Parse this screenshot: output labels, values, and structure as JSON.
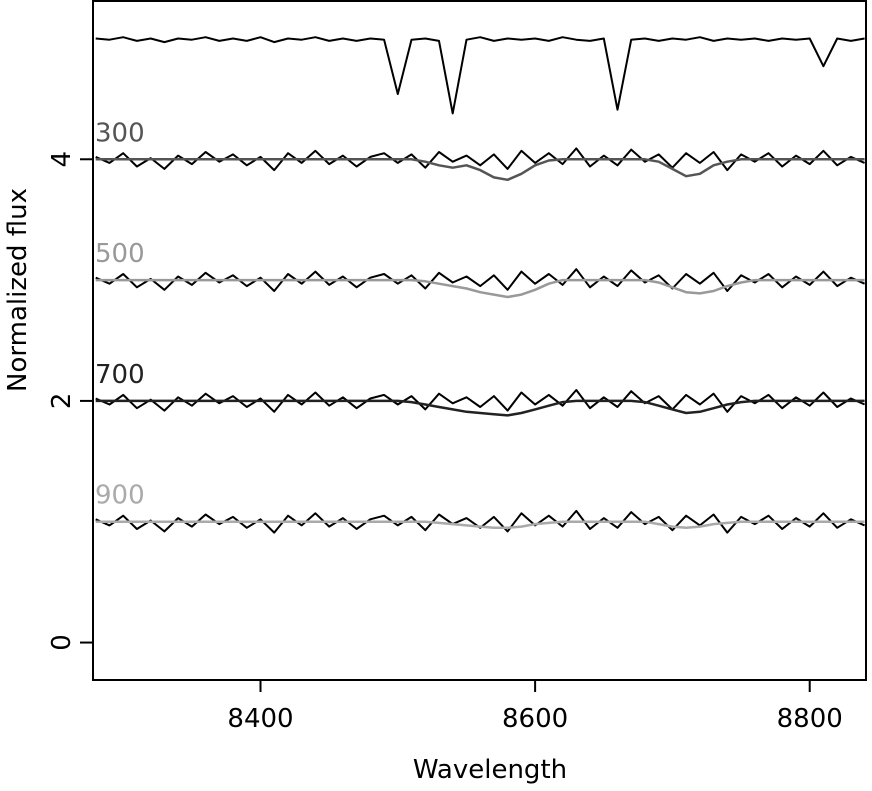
{
  "chart_data": {
    "type": "line",
    "xlabel": "Wavelength",
    "ylabel": "Normalized flux",
    "xlim": [
      8278,
      8841
    ],
    "ylim": [
      -0.31,
      5.31
    ],
    "xticks": [
      8400,
      8600,
      8800
    ],
    "yticks": [
      0,
      2,
      4
    ],
    "x": [
      8280,
      8290,
      8300,
      8310,
      8320,
      8330,
      8340,
      8350,
      8360,
      8370,
      8380,
      8390,
      8400,
      8410,
      8420,
      8430,
      8440,
      8450,
      8460,
      8470,
      8480,
      8490,
      8500,
      8510,
      8520,
      8530,
      8540,
      8550,
      8560,
      8570,
      8580,
      8590,
      8600,
      8610,
      8620,
      8630,
      8640,
      8650,
      8660,
      8670,
      8680,
      8690,
      8700,
      8710,
      8720,
      8730,
      8740,
      8750,
      8760,
      8770,
      8780,
      8790,
      8800,
      8810,
      8820,
      8830,
      8840
    ],
    "series": [
      {
        "color": "#000000",
        "values": [
          5.0,
          4.99,
          5.01,
          4.98,
          5.0,
          4.97,
          5.0,
          4.99,
          5.01,
          4.98,
          5.0,
          4.98,
          5.01,
          4.97,
          5.0,
          4.99,
          5.01,
          4.98,
          5.0,
          4.98,
          5.0,
          4.99,
          4.54,
          4.99,
          5.0,
          4.98,
          4.38,
          4.99,
          5.01,
          4.98,
          5.0,
          4.99,
          5.0,
          4.98,
          5.01,
          4.99,
          4.98,
          5.0,
          4.41,
          4.99,
          5.0,
          4.98,
          5.0,
          4.99,
          5.01,
          4.98,
          5.0,
          4.99,
          5.0,
          4.98,
          5.0,
          4.99,
          5.0,
          4.77,
          5.0,
          4.98,
          5.0
        ]
      },
      {
        "color": "#000000",
        "values": [
          4.02,
          3.97,
          4.05,
          3.94,
          4.01,
          3.92,
          4.03,
          3.96,
          4.06,
          3.98,
          4.04,
          3.95,
          4.02,
          3.91,
          4.05,
          3.97,
          4.07,
          3.96,
          4.03,
          3.94,
          4.02,
          4.05,
          3.97,
          4.04,
          3.93,
          4.06,
          3.98,
          4.03,
          3.95,
          4.04,
          3.92,
          4.07,
          3.97,
          4.05,
          3.96,
          4.09,
          3.94,
          4.03,
          3.95,
          4.08,
          3.98,
          4.04,
          3.93,
          4.05,
          3.97,
          4.06,
          3.91,
          4.04,
          3.98,
          4.05,
          3.94,
          4.03,
          3.96,
          4.07,
          3.95,
          4.02,
          3.97
        ]
      },
      {
        "color": "#000000",
        "values": [
          3.02,
          2.97,
          3.05,
          2.94,
          3.01,
          2.92,
          3.03,
          2.96,
          3.06,
          2.98,
          3.04,
          2.95,
          3.02,
          2.91,
          3.05,
          2.97,
          3.07,
          2.96,
          3.03,
          2.94,
          3.02,
          3.05,
          2.97,
          3.04,
          2.93,
          3.06,
          2.98,
          3.03,
          2.95,
          3.04,
          2.92,
          3.07,
          2.97,
          3.05,
          2.96,
          3.09,
          2.94,
          3.03,
          2.95,
          3.08,
          2.98,
          3.04,
          2.93,
          3.05,
          2.97,
          3.06,
          2.91,
          3.04,
          2.98,
          3.05,
          2.94,
          3.03,
          2.96,
          3.07,
          2.95,
          3.02,
          2.97
        ]
      },
      {
        "color": "#000000",
        "values": [
          2.02,
          1.97,
          2.05,
          1.94,
          2.01,
          1.92,
          2.03,
          1.96,
          2.06,
          1.98,
          2.04,
          1.95,
          2.02,
          1.91,
          2.05,
          1.97,
          2.07,
          1.96,
          2.03,
          1.94,
          2.02,
          2.05,
          1.97,
          2.04,
          1.93,
          2.06,
          1.98,
          2.03,
          1.95,
          2.04,
          1.92,
          2.07,
          1.97,
          2.05,
          1.96,
          2.09,
          1.94,
          2.03,
          1.95,
          2.08,
          1.98,
          2.04,
          1.93,
          2.05,
          1.97,
          2.06,
          1.91,
          2.04,
          1.98,
          2.05,
          1.94,
          2.03,
          1.96,
          2.07,
          1.95,
          2.02,
          1.97
        ]
      },
      {
        "color": "#000000",
        "values": [
          1.02,
          0.97,
          1.05,
          0.94,
          1.01,
          0.92,
          1.03,
          0.96,
          1.06,
          0.98,
          1.04,
          0.95,
          1.02,
          0.91,
          1.05,
          0.97,
          1.07,
          0.96,
          1.03,
          0.94,
          1.02,
          1.05,
          0.97,
          1.04,
          0.93,
          1.06,
          0.98,
          1.03,
          0.95,
          1.04,
          0.92,
          1.07,
          0.97,
          1.05,
          0.96,
          1.09,
          0.94,
          1.03,
          0.95,
          1.08,
          0.98,
          1.04,
          0.93,
          1.05,
          0.97,
          1.06,
          0.91,
          1.04,
          0.98,
          1.05,
          0.94,
          1.03,
          0.96,
          1.07,
          0.95,
          1.02,
          0.97
        ]
      },
      {
        "name": "300",
        "color": "#555555",
        "values": [
          4.0,
          4.0,
          4.0,
          4.0,
          4.0,
          4.0,
          4.0,
          4.0,
          4.0,
          4.0,
          4.0,
          4.0,
          4.0,
          4.0,
          4.0,
          4.0,
          4.0,
          4.0,
          4.0,
          4.0,
          4.0,
          4.0,
          4.0,
          4.0,
          3.98,
          3.95,
          3.93,
          3.95,
          3.91,
          3.85,
          3.83,
          3.88,
          3.95,
          3.99,
          4.0,
          4.0,
          4.0,
          4.0,
          4.0,
          4.0,
          4.0,
          3.98,
          3.92,
          3.86,
          3.88,
          3.95,
          3.98,
          4.0,
          4.0,
          4.0,
          4.0,
          4.0,
          4.0,
          4.0,
          4.0,
          4.0,
          4.0
        ]
      },
      {
        "name": "500",
        "color": "#999999",
        "values": [
          3.0,
          3.0,
          3.0,
          3.0,
          3.0,
          3.0,
          3.0,
          3.0,
          3.0,
          3.0,
          3.0,
          3.0,
          3.0,
          3.0,
          3.0,
          3.0,
          3.0,
          3.0,
          3.0,
          3.0,
          3.0,
          3.0,
          3.0,
          3.0,
          2.99,
          2.97,
          2.95,
          2.93,
          2.9,
          2.88,
          2.86,
          2.88,
          2.92,
          2.97,
          3.0,
          3.0,
          3.0,
          3.0,
          3.0,
          3.0,
          3.0,
          2.98,
          2.94,
          2.9,
          2.89,
          2.91,
          2.95,
          2.98,
          3.0,
          3.0,
          3.0,
          3.0,
          3.0,
          3.0,
          3.0,
          3.0,
          3.0
        ]
      },
      {
        "name": "700",
        "color": "#222222",
        "values": [
          2.0,
          2.0,
          2.0,
          2.0,
          2.0,
          2.0,
          2.0,
          2.0,
          2.0,
          2.0,
          2.0,
          2.0,
          2.0,
          2.0,
          2.0,
          2.0,
          2.0,
          2.0,
          2.0,
          2.0,
          2.0,
          2.0,
          2.0,
          1.99,
          1.97,
          1.95,
          1.93,
          1.91,
          1.9,
          1.89,
          1.88,
          1.9,
          1.93,
          1.96,
          1.99,
          2.0,
          2.0,
          2.0,
          2.0,
          2.0,
          1.99,
          1.96,
          1.93,
          1.9,
          1.91,
          1.94,
          1.97,
          1.99,
          2.0,
          2.0,
          2.0,
          2.0,
          2.0,
          2.0,
          2.0,
          2.0,
          2.0
        ]
      },
      {
        "name": "900",
        "color": "#aaaaaa",
        "values": [
          1.0,
          1.0,
          1.0,
          1.0,
          1.0,
          1.0,
          1.0,
          1.0,
          1.0,
          1.0,
          1.0,
          1.0,
          1.0,
          1.0,
          1.0,
          1.0,
          1.0,
          1.0,
          1.0,
          1.0,
          1.0,
          1.0,
          1.0,
          1.0,
          1.0,
          0.99,
          0.98,
          0.97,
          0.96,
          0.95,
          0.95,
          0.96,
          0.98,
          0.99,
          1.0,
          1.0,
          1.0,
          1.0,
          1.0,
          1.0,
          1.0,
          0.98,
          0.96,
          0.95,
          0.96,
          0.98,
          0.99,
          1.0,
          1.0,
          1.0,
          1.0,
          1.0,
          1.0,
          1.0,
          1.0,
          1.0,
          1.0
        ]
      }
    ]
  }
}
